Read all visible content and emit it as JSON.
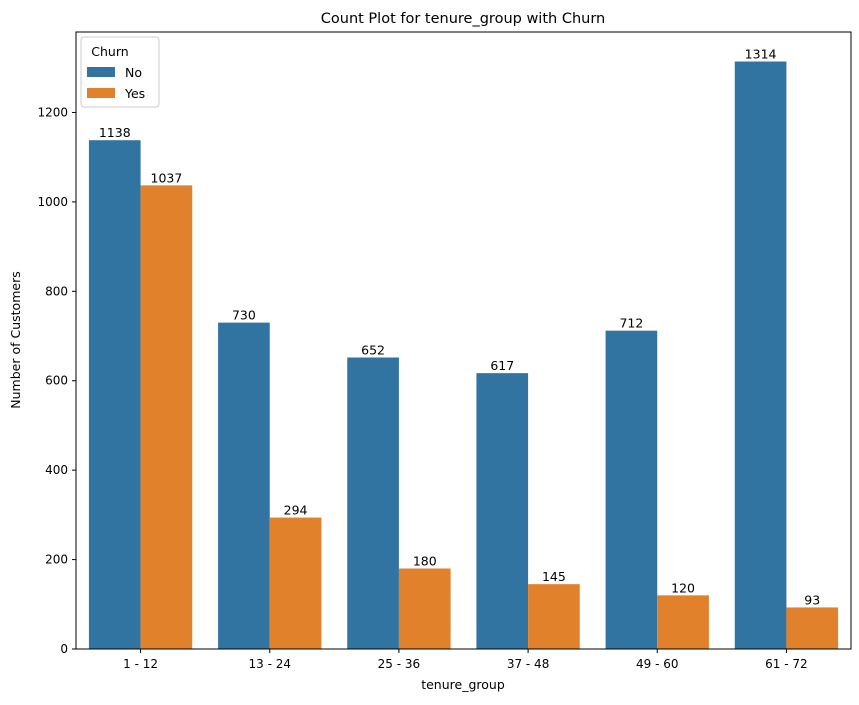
{
  "chart_data": {
    "type": "bar",
    "title": "Count Plot for tenure_group with Churn",
    "xlabel": "tenure_group",
    "ylabel": "Number of Customers",
    "categories": [
      "1 - 12",
      "13 - 24",
      "25 - 36",
      "37 - 48",
      "49 - 60",
      "61 - 72"
    ],
    "series": [
      {
        "name": "No",
        "color": "#3274a1",
        "values": [
          1138,
          730,
          652,
          617,
          712,
          1314
        ]
      },
      {
        "name": "Yes",
        "color": "#e1812c",
        "values": [
          1037,
          294,
          180,
          145,
          120,
          93
        ]
      }
    ],
    "yticks": [
      0,
      200,
      400,
      600,
      800,
      1000,
      1200
    ],
    "ylim": [
      0,
      1380
    ],
    "grid": false,
    "legend": {
      "title": "Churn",
      "placement": "top-left"
    }
  }
}
